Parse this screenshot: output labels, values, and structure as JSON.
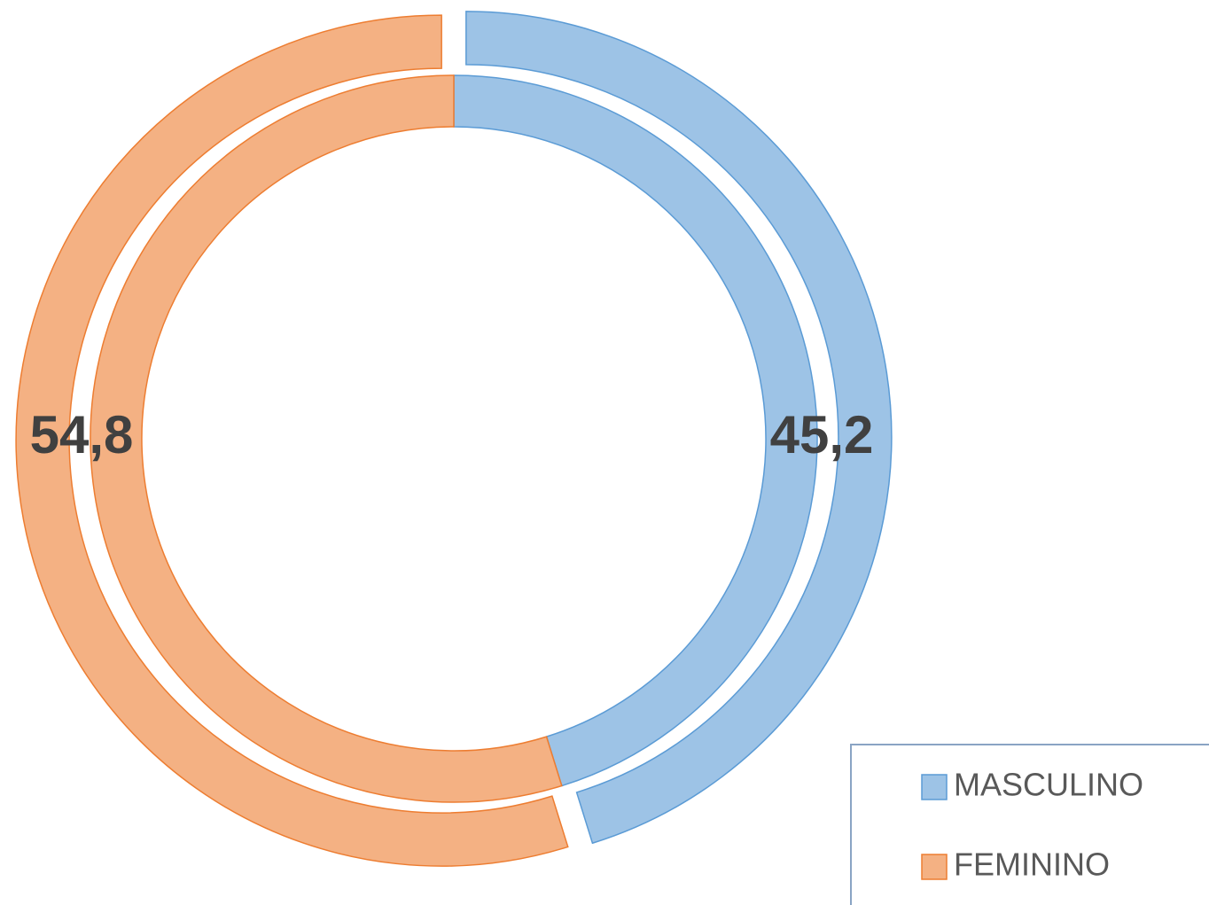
{
  "chart_data": {
    "type": "doughnut",
    "categories": [
      "MASCULINO",
      "FEMININO"
    ],
    "colors": [
      "#9dc3e6",
      "#f4b183"
    ],
    "stroke_colors": [
      "#5b9bd5",
      "#ed7d31"
    ],
    "series": [
      {
        "values": [
          45.2,
          54.8
        ],
        "value_labels": [
          "45,2",
          "54,8"
        ]
      },
      {
        "values": [
          45.2,
          54.8
        ]
      }
    ]
  }
}
